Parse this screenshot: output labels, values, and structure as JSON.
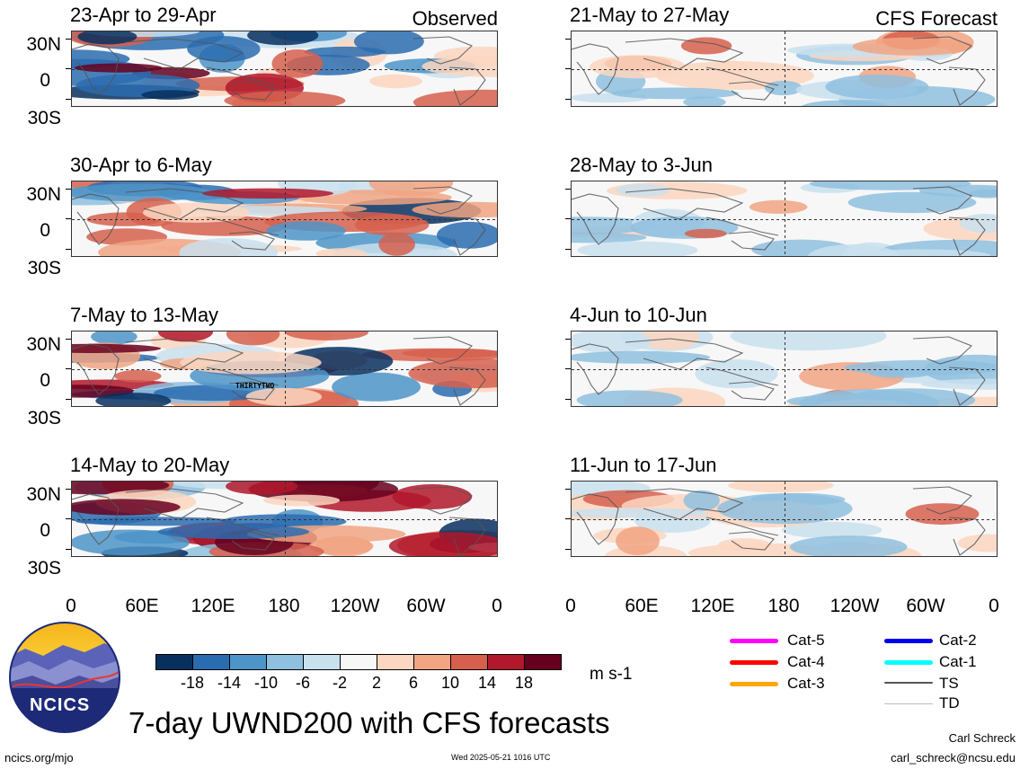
{
  "header": {
    "observed_label": "Observed",
    "forecast_label": "CFS Forecast"
  },
  "panels_left": [
    {
      "period": "23-Apr to 29-Apr"
    },
    {
      "period": "30-Apr to 6-May"
    },
    {
      "period": "7-May to 13-May",
      "storm_label": "THIRTYTWO"
    },
    {
      "period": "14-May to 20-May"
    }
  ],
  "panels_right": [
    {
      "period": "21-May to 27-May"
    },
    {
      "period": "28-May to 3-Jun"
    },
    {
      "period": "4-Jun to 10-Jun"
    },
    {
      "period": "11-Jun to 17-Jun"
    }
  ],
  "lat_labels": [
    "30N",
    "0",
    "30S"
  ],
  "lon_labels": [
    "0",
    "60E",
    "120E",
    "180",
    "120W",
    "60W",
    "0"
  ],
  "colorbar": {
    "colors": [
      "#08305f",
      "#2a6cb0",
      "#4d94c8",
      "#8fc0df",
      "#c9e1ef",
      "#f7f7f7",
      "#fbd6c0",
      "#f1a583",
      "#d6604d",
      "#b2182b",
      "#67001f"
    ],
    "labels": [
      "-18",
      "-14",
      "-10",
      "-6",
      "-2",
      "2",
      "6",
      "10",
      "14",
      "18"
    ],
    "units": "m s-1"
  },
  "legend": [
    {
      "label": "Cat-5",
      "color": "#ff00ff"
    },
    {
      "label": "Cat-4",
      "color": "#ff0000"
    },
    {
      "label": "Cat-3",
      "color": "#ffa500"
    },
    {
      "label": "Cat-2",
      "color": "#0000ee"
    },
    {
      "label": "Cat-1",
      "color": "#00ffff"
    },
    {
      "label": "TS",
      "color": "#555555"
    },
    {
      "label": "TD",
      "color": "#bbbbbb"
    }
  ],
  "logo": {
    "text": "NCICS"
  },
  "main_title": "7-day UWND200 with CFS forecasts",
  "footer": {
    "url": "ncics.org/mjo",
    "timestamp": "Wed 2025-05-21 1016 UTC",
    "author": "Carl Schreck",
    "email": "carl_schreck@ncsu.edu"
  }
}
